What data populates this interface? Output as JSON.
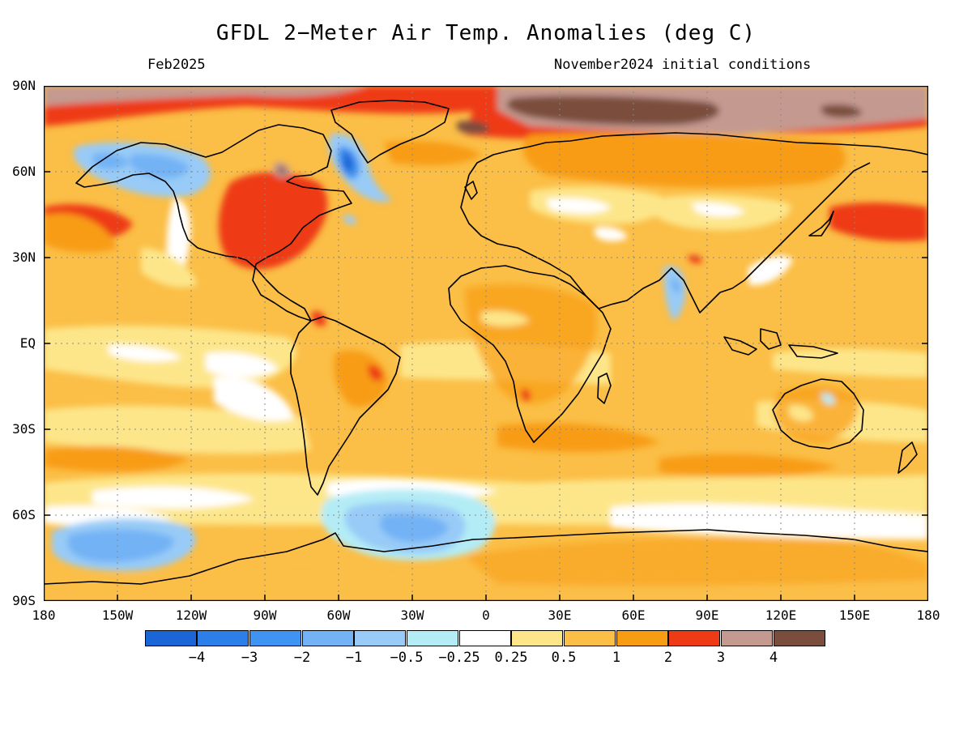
{
  "header": {
    "title": "GFDL 2-Meter Air Temp. Anomalies (deg C)",
    "valid_month": "Feb2025",
    "init": "November2024 initial conditions"
  },
  "axes": {
    "lat_labels": [
      "90N",
      "60N",
      "30N",
      "EQ",
      "30S",
      "60S",
      "90S"
    ],
    "lon_labels": [
      "180",
      "150W",
      "120W",
      "90W",
      "60W",
      "30W",
      "0",
      "30E",
      "60E",
      "90E",
      "120E",
      "150E",
      "180"
    ]
  },
  "legend": {
    "colors": [
      "#1a66d6",
      "#2c7ee8",
      "#3f93f2",
      "#72b2f5",
      "#98cbf7",
      "#b4ecf6",
      "#ffffff",
      "#fde68a",
      "#fbbe46",
      "#f89c14",
      "#ee3a15",
      "#c49a90",
      "#7a4d3c"
    ],
    "labels": [
      "-4",
      "-3",
      "-2",
      "-1",
      "-0.5",
      "-0.25",
      "0.25",
      "0.5",
      "1",
      "2",
      "3",
      "4"
    ]
  },
  "map_colors": {
    "land_line": "#000000",
    "background": "#fbbe46"
  }
}
